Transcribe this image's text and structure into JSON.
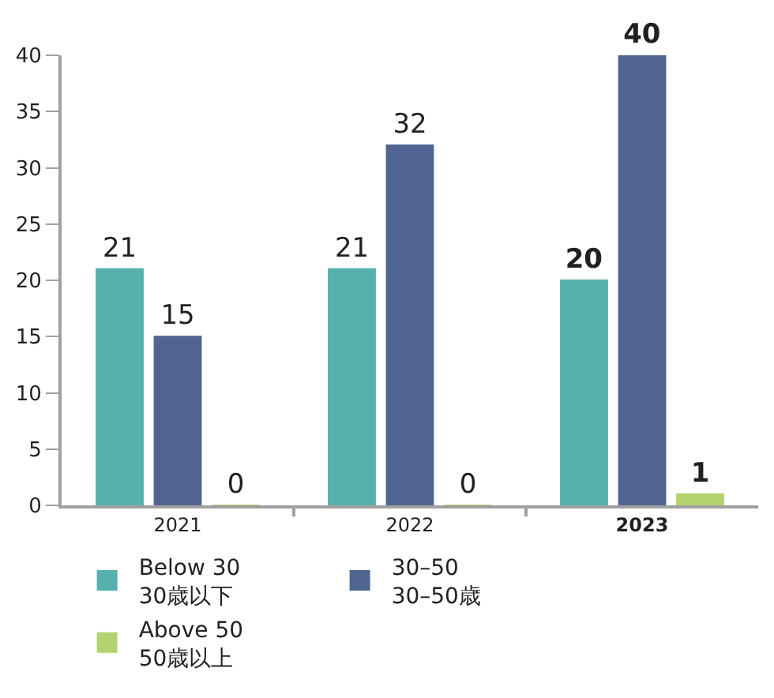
{
  "chart_data": {
    "type": "bar",
    "categories": [
      "2021",
      "2022",
      "2023"
    ],
    "series": [
      {
        "name": "Below 30\n30歳以下",
        "color": "#56b0ad",
        "values": [
          21,
          21,
          20
        ]
      },
      {
        "name": "30–50\n30–50歳",
        "color": "#506491",
        "values": [
          15,
          32,
          40
        ]
      },
      {
        "name": "Above 50\n50歳以上",
        "color": "#b2d36f",
        "values": [
          0,
          0,
          1
        ]
      }
    ],
    "ylim": [
      0,
      40
    ],
    "yticks": [
      0,
      5,
      10,
      15,
      20,
      25,
      30,
      35,
      40
    ],
    "data_labels": true,
    "legend": "bottom"
  }
}
